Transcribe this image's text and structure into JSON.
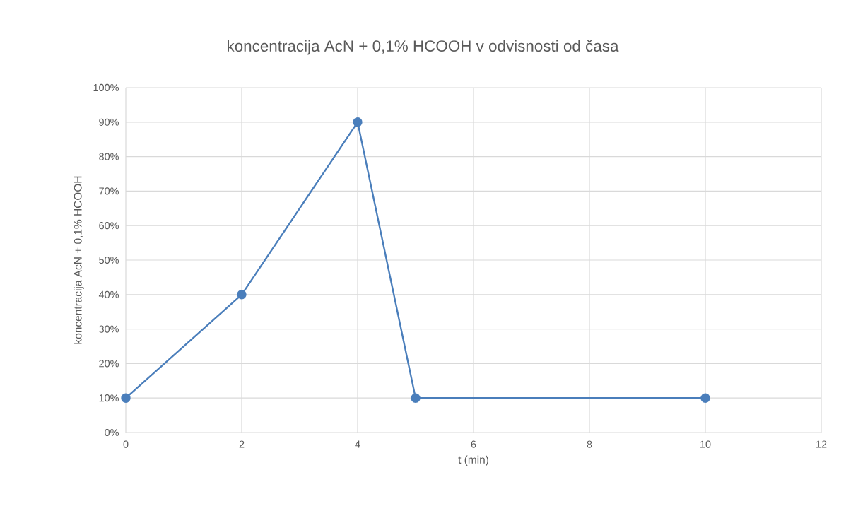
{
  "chart_data": {
    "type": "line",
    "title": "koncentracija AcN + 0,1% HCOOH v odvisnosti od časa",
    "xlabel": "t (min)",
    "ylabel": "koncentracija AcN + 0,1% HCOOH",
    "x": [
      0,
      2,
      4,
      5,
      10
    ],
    "series": [
      {
        "color": "#4a7ebb",
        "values": [
          10,
          40,
          90,
          10,
          10
        ]
      }
    ],
    "xlim": [
      0,
      12
    ],
    "xticks": [
      0,
      2,
      4,
      6,
      8,
      10,
      12
    ],
    "ylim": [
      0,
      100
    ],
    "yticks": [
      {
        "value": 0,
        "label": "0%"
      },
      {
        "value": 10,
        "label": "10%"
      },
      {
        "value": 20,
        "label": "20%"
      },
      {
        "value": 30,
        "label": "30%"
      },
      {
        "value": 40,
        "label": "40%"
      },
      {
        "value": 50,
        "label": "50%"
      },
      {
        "value": 60,
        "label": "60%"
      },
      {
        "value": 70,
        "label": "70%"
      },
      {
        "value": 80,
        "label": "80%"
      },
      {
        "value": 90,
        "label": "90%"
      },
      {
        "value": 100,
        "label": "100%"
      }
    ],
    "grid": true,
    "marker": "circle",
    "line_style": "solid"
  }
}
